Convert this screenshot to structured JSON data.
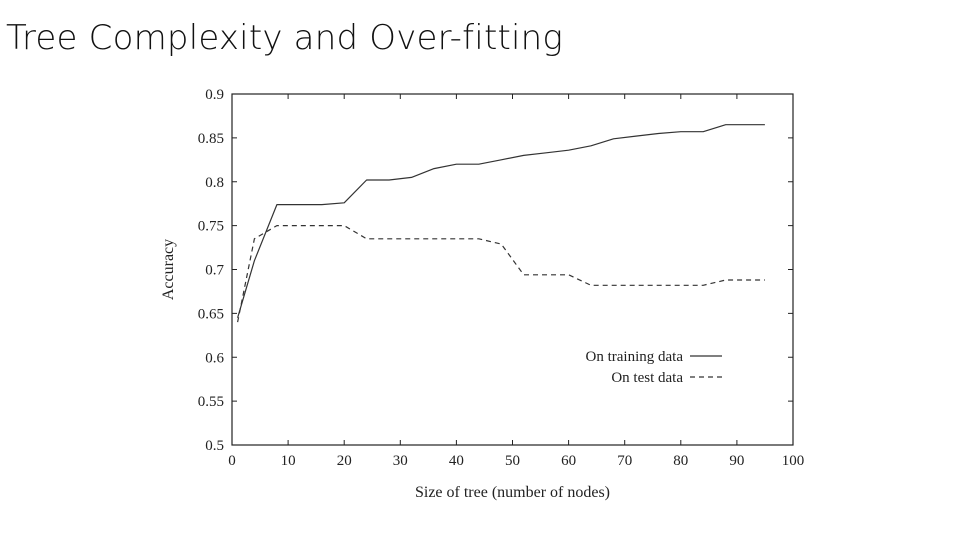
{
  "slide": {
    "title": "Tree Complexity and Over-fitting"
  },
  "chart_data": {
    "type": "line",
    "title": "",
    "xlabel": "Size of tree (number of nodes)",
    "ylabel": "Accuracy",
    "xlim": [
      0,
      100
    ],
    "ylim": [
      0.5,
      0.9
    ],
    "xticks": [
      0,
      10,
      20,
      30,
      40,
      50,
      60,
      70,
      80,
      90,
      100
    ],
    "yticks": [
      0.5,
      0.55,
      0.6,
      0.65,
      0.7,
      0.75,
      0.8,
      0.85,
      0.9
    ],
    "yticklabels": [
      "0.5",
      "0.55",
      "0.6",
      "0.65",
      "0.7",
      "0.75",
      "0.8",
      "0.85",
      "0.9"
    ],
    "grid": false,
    "legend": "bottom-right",
    "series": [
      {
        "name": "On training data",
        "style": "solid",
        "color": "#333333",
        "x": [
          1,
          4,
          8,
          12,
          16,
          20,
          24,
          28,
          32,
          36,
          40,
          44,
          48,
          52,
          56,
          60,
          64,
          68,
          72,
          76,
          80,
          84,
          88,
          92,
          95
        ],
        "y": [
          0.645,
          0.71,
          0.774,
          0.774,
          0.774,
          0.776,
          0.802,
          0.802,
          0.805,
          0.815,
          0.82,
          0.82,
          0.825,
          0.83,
          0.833,
          0.836,
          0.841,
          0.849,
          0.852,
          0.855,
          0.857,
          0.857,
          0.865,
          0.865,
          0.865
        ]
      },
      {
        "name": "On test data",
        "style": "dashed",
        "color": "#333333",
        "x": [
          1,
          4,
          8,
          12,
          16,
          20,
          24,
          28,
          32,
          36,
          40,
          44,
          48,
          52,
          56,
          60,
          64,
          68,
          72,
          76,
          80,
          84,
          88,
          92,
          95
        ],
        "y": [
          0.64,
          0.735,
          0.75,
          0.75,
          0.75,
          0.75,
          0.735,
          0.735,
          0.735,
          0.735,
          0.735,
          0.735,
          0.729,
          0.694,
          0.694,
          0.694,
          0.682,
          0.682,
          0.682,
          0.682,
          0.682,
          0.682,
          0.688,
          0.688,
          0.688
        ]
      }
    ]
  }
}
